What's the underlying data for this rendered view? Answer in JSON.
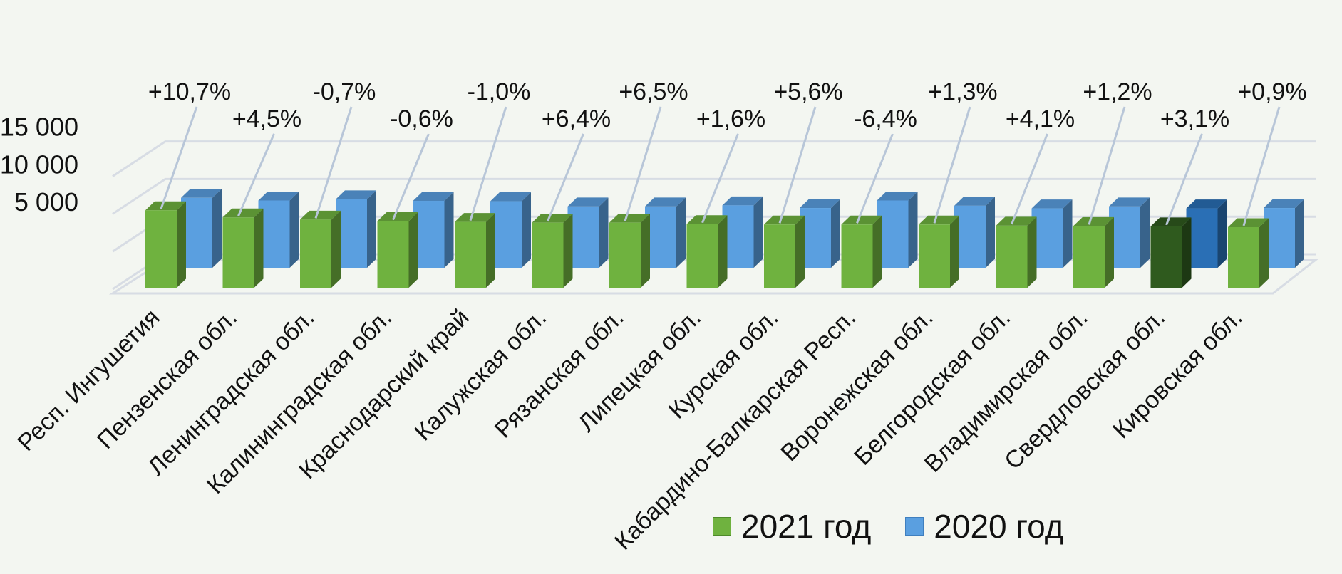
{
  "chart_data": {
    "type": "bar",
    "style": "3d-clustered",
    "categories": [
      "Респ. Ингушетия",
      "Пензенская обл.",
      "Ленинградская обл.",
      "Калининградская обл.",
      "Краснодарский край",
      "Калужская обл.",
      "Рязанская обл.",
      "Липецкая обл.",
      "Курская обл.",
      "Кабардино-Балкарская Респ.",
      "Воронежская обл.",
      "Белгородская обл.",
      "Владимирская обл.",
      "Свердловская обл.",
      "Кировская обл."
    ],
    "series": [
      {
        "name": "2021 год",
        "color": "#6fb23f",
        "values": [
          10300,
          9350,
          9050,
          8850,
          8750,
          8650,
          8650,
          8450,
          8400,
          8400,
          8400,
          8250,
          8200,
          8150,
          8050
        ]
      },
      {
        "name": "2020 год",
        "color": "#5a9fe0",
        "values": [
          9300,
          8950,
          9100,
          8900,
          8850,
          8150,
          8150,
          8300,
          7950,
          8950,
          8250,
          7900,
          8150,
          7900,
          7950
        ]
      }
    ],
    "highlight_index": 13,
    "highlight_colors": {
      "2021 год": "#2f5a1e",
      "2020 год": "#2a6fb5"
    },
    "change_labels": [
      "+10,7%",
      "+4,5%",
      "-0,7%",
      "-0,6%",
      "-1,0%",
      "+6,4%",
      "+6,5%",
      "+1,6%",
      "+5,6%",
      "-6,4%",
      "+1,3%",
      "+4,1%",
      "+1,2%",
      "+3,1%",
      "+0,9%"
    ],
    "y_ticks": [
      "5 000",
      "10 000",
      "15 000"
    ],
    "y_tick_values": [
      5000,
      10000,
      15000
    ],
    "ylim": [
      0,
      15000
    ],
    "grid": true,
    "legend_position": "bottom"
  }
}
